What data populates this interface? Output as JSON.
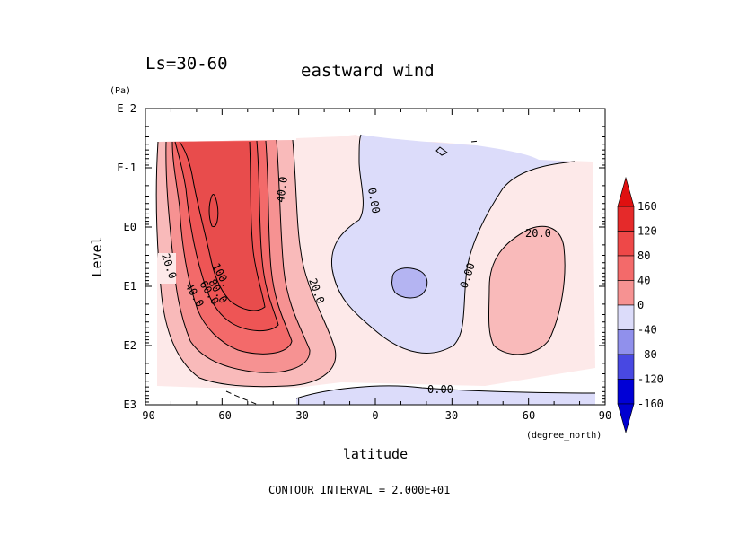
{
  "chart_data": {
    "type": "contour",
    "title": "eastward wind",
    "season_label": "Ls=30-60",
    "xlabel": "latitude",
    "x_unit": "(degree_north)",
    "ylabel": "Level",
    "y_unit": "(Pa)",
    "xlim": [
      -90,
      90
    ],
    "xticks": [
      -90,
      -60,
      -30,
      0,
      30,
      60,
      90
    ],
    "xtick_labels": [
      "-90",
      "-60",
      "-30",
      "0",
      "30",
      "60",
      "90"
    ],
    "y_scale": "log",
    "y_direction": "decreasing-upward",
    "yticks": [
      "E-2",
      "E-1",
      "E0",
      "E1",
      "E2",
      "E3"
    ],
    "ytick_values": [
      0.01,
      0.1,
      1,
      10,
      100,
      1000
    ],
    "contour_interval_label": "CONTOUR INTERVAL = 2.000E+01",
    "contour_interval": 20,
    "contour_labels": [
      "20.0",
      "40.0",
      "100.",
      "60.0",
      "80.0",
      "40.0",
      "20.0",
      "0.00",
      "20.0",
      "0.00",
      "0.00"
    ],
    "colorbar": {
      "levels": [
        "160",
        "120",
        "80",
        "40",
        "0",
        "-40",
        "-80",
        "-120",
        "-160"
      ],
      "positive_colors": [
        "#e52a2a",
        "#ee4848",
        "#f36a6a",
        "#f69292",
        "#f9baba",
        "#fde7e7"
      ],
      "negative_colors": [
        "#dcdcfa",
        "#b4b4f2",
        "#9090ec",
        "#6a6ae6",
        "#4848e2",
        "#2424dc",
        "#0000d6"
      ],
      "max_color": "#e01010",
      "min_color": "#0000d0"
    },
    "features": [
      {
        "kind": "westerly jet",
        "lat_center": -60,
        "peak_value": 120,
        "level_range_pa": [
          0.05,
          300
        ]
      },
      {
        "kind": "easterly region",
        "lat_range": [
          -10,
          50
        ],
        "min_value": -20,
        "level_range_pa": [
          0.05,
          200
        ]
      },
      {
        "kind": "westerly maximum",
        "lat_center": 60,
        "peak_value": 20,
        "level_range_pa": [
          1,
          100
        ]
      }
    ]
  }
}
